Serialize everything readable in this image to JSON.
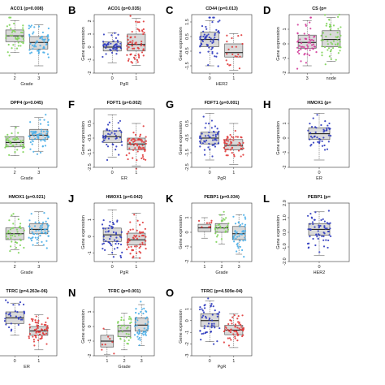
{
  "figure": {
    "panels": [
      {
        "id": "A",
        "letter": "",
        "title": "ACO1 (p=0.008)",
        "ylabel": "",
        "xlabel": "Grade",
        "cats": [
          "2",
          "3"
        ],
        "ylim": [
          -2,
          2
        ],
        "yticks": [],
        "series": [
          {
            "name": "",
            "color": "#7fd45a",
            "median": 0.55,
            "q1": 0.15,
            "q3": 0.95,
            "lo": -0.6,
            "hi": 1.6,
            "n": 40
          },
          {
            "name": "",
            "color": "#49aee8",
            "median": 0.1,
            "q1": -0.35,
            "q3": 0.5,
            "lo": -1.5,
            "hi": 1.3,
            "n": 55
          }
        ]
      },
      {
        "id": "B",
        "letter": "B",
        "title": "ACO1 (p=0.035)",
        "ylabel": "Gene expression",
        "xlabel": "PgR",
        "cats": [
          "0",
          "1"
        ],
        "ylim": [
          -2,
          2.5
        ],
        "yticks": [
          "-2",
          "-1",
          "0",
          "1",
          "2"
        ],
        "series": [
          {
            "name": "",
            "color": "#2f3bbf",
            "median": 0.0,
            "q1": -0.3,
            "q3": 0.4,
            "lo": -1.2,
            "hi": 1.1,
            "n": 45
          },
          {
            "name": "",
            "color": "#e03a3a",
            "median": 0.2,
            "q1": -0.3,
            "q3": 1.0,
            "lo": -1.4,
            "hi": 2.2,
            "n": 60
          }
        ]
      },
      {
        "id": "C",
        "letter": "C",
        "title": "CD44 (p=0.013)",
        "ylabel": "Gene expression",
        "xlabel": "HER2",
        "cats": [
          "0",
          "1"
        ],
        "ylim": [
          -2,
          2
        ],
        "yticks": [
          "-1.5",
          "-0.5",
          "0.5",
          "1.5"
        ],
        "series": [
          {
            "name": "",
            "color": "#2f3bbf",
            "median": 0.3,
            "q1": -0.2,
            "q3": 0.8,
            "lo": -1.5,
            "hi": 1.6,
            "n": 60
          },
          {
            "name": "",
            "color": "#e03a3a",
            "median": -0.6,
            "q1": -0.9,
            "q3": 0.0,
            "lo": -1.8,
            "hi": 0.7,
            "n": 20
          }
        ]
      },
      {
        "id": "D",
        "letter": "D",
        "title": "CS (p=",
        "ylabel": "Gene expression",
        "xlabel": "",
        "cats": [
          "3",
          "node"
        ],
        "ylim": [
          -2,
          2
        ],
        "yticks": [
          "-2",
          "-1",
          "0",
          "1"
        ],
        "series": [
          {
            "name": "",
            "color": "#d23c9a",
            "median": 0.1,
            "q1": -0.3,
            "q3": 0.6,
            "lo": -1.5,
            "hi": 1.6,
            "n": 55
          },
          {
            "name": "",
            "color": "#7fd45a",
            "median": 0.3,
            "q1": -0.2,
            "q3": 0.9,
            "lo": -1.2,
            "hi": 1.8,
            "n": 55
          }
        ]
      },
      {
        "id": "E",
        "letter": "",
        "title": "DPP4 (p=0.045)",
        "ylabel": "",
        "xlabel": "Grade",
        "cats": [
          "2",
          "3"
        ],
        "ylim": [
          -2,
          2
        ],
        "yticks": [],
        "series": [
          {
            "name": "",
            "color": "#7fd45a",
            "median": -0.3,
            "q1": -0.6,
            "q3": 0.1,
            "lo": -1.2,
            "hi": 0.8,
            "n": 40
          },
          {
            "name": "",
            "color": "#49aee8",
            "median": 0.2,
            "q1": -0.1,
            "q3": 0.6,
            "lo": -0.9,
            "hi": 1.4,
            "n": 55
          }
        ]
      },
      {
        "id": "F",
        "letter": "F",
        "title": "FDFT1 (p=0.002)",
        "ylabel": "Gene expression",
        "xlabel": "ER",
        "cats": [
          "0",
          "1"
        ],
        "ylim": [
          -2.5,
          1.5
        ],
        "yticks": [
          "-2.5",
          "-1.5",
          "-0.5",
          "0.5"
        ],
        "series": [
          {
            "name": "",
            "color": "#2f3bbf",
            "median": -0.4,
            "q1": -0.8,
            "q3": 0.0,
            "lo": -1.8,
            "hi": 1.1,
            "n": 40
          },
          {
            "name": "",
            "color": "#e03a3a",
            "median": -0.9,
            "q1": -1.3,
            "q3": -0.5,
            "lo": -2.4,
            "hi": 0.5,
            "n": 60
          }
        ]
      },
      {
        "id": "G",
        "letter": "G",
        "title": "FDFT1 (p=0.001)",
        "ylabel": "Gene expression",
        "xlabel": "PgR",
        "cats": [
          "0",
          "1"
        ],
        "ylim": [
          -2.5,
          1.5
        ],
        "yticks": [
          "-2.5",
          "-1.5",
          "-0.5",
          "0.5"
        ],
        "series": [
          {
            "name": "",
            "color": "#2f3bbf",
            "median": -0.5,
            "q1": -0.9,
            "q3": -0.1,
            "lo": -2.0,
            "hi": 1.2,
            "n": 50
          },
          {
            "name": "",
            "color": "#e03a3a",
            "median": -1.0,
            "q1": -1.3,
            "q3": -0.6,
            "lo": -2.3,
            "hi": 0.5,
            "n": 50
          }
        ]
      },
      {
        "id": "H",
        "letter": "H",
        "title": "HMOX1 (p=",
        "ylabel": "Gene expression",
        "xlabel": "ER",
        "cats": [
          "0"
        ],
        "ylim": [
          -2,
          2
        ],
        "yticks": [
          "-2",
          "-1",
          "0",
          "1"
        ],
        "series": [
          {
            "name": "",
            "color": "#2f3bbf",
            "median": 0.3,
            "q1": -0.1,
            "q3": 0.7,
            "lo": -1.5,
            "hi": 1.7,
            "n": 45
          }
        ]
      },
      {
        "id": "I",
        "letter": "",
        "title": "HMOX1 (p=0.021)",
        "ylabel": "",
        "xlabel": "Grade",
        "cats": [
          "2",
          "3"
        ],
        "ylim": [
          -2,
          2
        ],
        "yticks": [],
        "series": [
          {
            "name": "",
            "color": "#7fd45a",
            "median": -0.1,
            "q1": -0.5,
            "q3": 0.3,
            "lo": -1.2,
            "hi": 1.1,
            "n": 40
          },
          {
            "name": "",
            "color": "#49aee8",
            "median": 0.2,
            "q1": -0.1,
            "q3": 0.6,
            "lo": -0.9,
            "hi": 1.4,
            "n": 55
          }
        ]
      },
      {
        "id": "J",
        "letter": "J",
        "title": "HMOX1 (p=0.042)",
        "ylabel": "Gene expression",
        "xlabel": "PgR",
        "cats": [
          "0",
          "1"
        ],
        "ylim": [
          -1.5,
          2
        ],
        "yticks": [
          "-1",
          "0",
          "1"
        ],
        "series": [
          {
            "name": "",
            "color": "#2f3bbf",
            "median": 0.1,
            "q1": -0.3,
            "q3": 0.5,
            "lo": -1.1,
            "hi": 1.6,
            "n": 50
          },
          {
            "name": "",
            "color": "#e03a3a",
            "median": -0.2,
            "q1": -0.5,
            "q3": 0.2,
            "lo": -1.3,
            "hi": 1.4,
            "n": 55
          }
        ]
      },
      {
        "id": "K",
        "letter": "K",
        "title": "PEBP1 (p=0.034)",
        "ylabel": "Gene expression",
        "xlabel": "Grade",
        "cats": [
          "1",
          "2",
          "3"
        ],
        "ylim": [
          -2,
          2
        ],
        "yticks": [
          "-2",
          "-1",
          "0",
          "1"
        ],
        "series": [
          {
            "name": "",
            "color": "#e03a3a",
            "median": 0.3,
            "q1": 0.05,
            "q3": 0.55,
            "lo": -0.4,
            "hi": 1.0,
            "n": 8
          },
          {
            "name": "",
            "color": "#7fd45a",
            "median": 0.3,
            "q1": 0.0,
            "q3": 0.6,
            "lo": -0.8,
            "hi": 1.2,
            "n": 30
          },
          {
            "name": "",
            "color": "#49aee8",
            "median": -0.1,
            "q1": -0.5,
            "q3": 0.4,
            "lo": -1.5,
            "hi": 1.2,
            "n": 45
          }
        ]
      },
      {
        "id": "L",
        "letter": "L",
        "title": "PEBP1 (p=",
        "ylabel": "Gene expression",
        "xlabel": "HER2",
        "cats": [
          "0"
        ],
        "ylim": [
          -2,
          2
        ],
        "yticks": [
          "-2.0",
          "-1.0",
          "0.0",
          "1.0",
          "2.0"
        ],
        "series": [
          {
            "name": "",
            "color": "#2f3bbf",
            "median": 0.2,
            "q1": -0.2,
            "q3": 0.6,
            "lo": -1.6,
            "hi": 1.4,
            "n": 60
          }
        ]
      },
      {
        "id": "M",
        "letter": "",
        "title": "TFRC (p=4.263e-06)",
        "ylabel": "",
        "xlabel": "ER",
        "cats": [
          "0",
          "1"
        ],
        "ylim": [
          -2,
          2
        ],
        "yticks": [],
        "series": [
          {
            "name": "",
            "color": "#2f3bbf",
            "median": 0.6,
            "q1": 0.2,
            "q3": 1.0,
            "lo": -0.6,
            "hi": 1.6,
            "n": 30
          },
          {
            "name": "",
            "color": "#e03a3a",
            "median": -0.3,
            "q1": -0.6,
            "q3": 0.0,
            "lo": -1.6,
            "hi": 0.8,
            "n": 60
          }
        ]
      },
      {
        "id": "N",
        "letter": "N",
        "title": "TFRC (p=0.001)",
        "ylabel": "Gene expression",
        "xlabel": "Grade",
        "cats": [
          "1",
          "2",
          "3"
        ],
        "ylim": [
          -2,
          2
        ],
        "yticks": [
          "-2",
          "-1",
          "0",
          "1"
        ],
        "series": [
          {
            "name": "",
            "color": "#e03a3a",
            "median": -1.0,
            "q1": -1.4,
            "q3": -0.6,
            "lo": -1.9,
            "hi": -0.2,
            "n": 8
          },
          {
            "name": "",
            "color": "#7fd45a",
            "median": -0.3,
            "q1": -0.7,
            "q3": 0.1,
            "lo": -1.6,
            "hi": 0.9,
            "n": 30
          },
          {
            "name": "",
            "color": "#49aee8",
            "median": 0.1,
            "q1": -0.3,
            "q3": 0.6,
            "lo": -1.3,
            "hi": 1.5,
            "n": 45
          }
        ]
      },
      {
        "id": "O",
        "letter": "O",
        "title": "TFRC (p=4.509e-04)",
        "ylabel": "Gene expression",
        "xlabel": "PgR",
        "cats": [
          "0",
          "1"
        ],
        "ylim": [
          -3,
          2
        ],
        "yticks": [
          "-3",
          "-2",
          "-1",
          "0",
          "1"
        ],
        "series": [
          {
            "name": "",
            "color": "#2f3bbf",
            "median": 0.0,
            "q1": -0.5,
            "q3": 0.6,
            "lo": -1.8,
            "hi": 1.7,
            "n": 50
          },
          {
            "name": "",
            "color": "#e03a3a",
            "median": -0.8,
            "q1": -1.2,
            "q3": -0.4,
            "lo": -2.3,
            "hi": 0.6,
            "n": 55
          }
        ]
      }
    ]
  }
}
